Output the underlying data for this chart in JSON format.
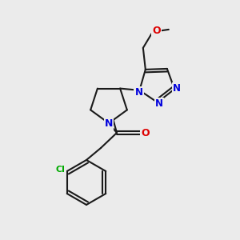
{
  "bg_color": "#ebebeb",
  "bond_color": "#1a1a1a",
  "bond_width": 1.5,
  "atom_colors": {
    "N": "#0000dd",
    "O": "#dd0000",
    "Cl": "#00aa00",
    "C": "#1a1a1a"
  }
}
